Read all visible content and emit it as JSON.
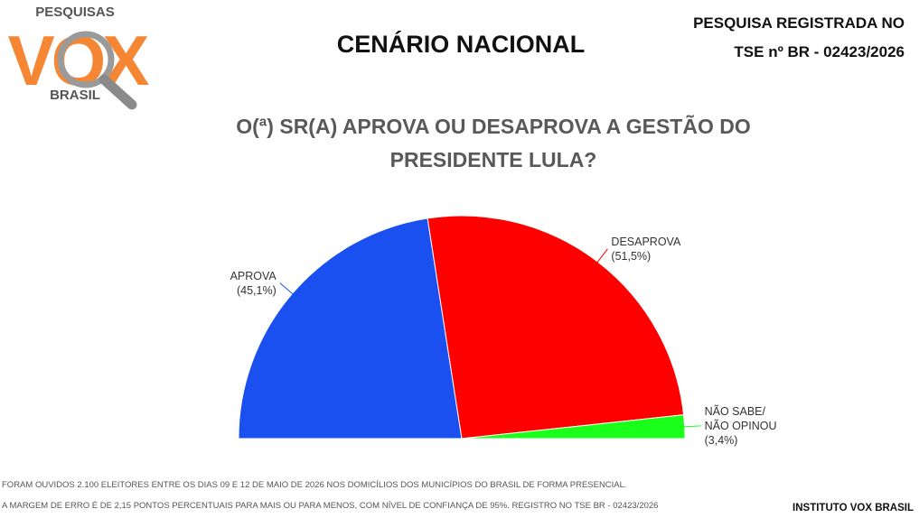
{
  "header": {
    "logo": {
      "top": "PESQUISAS",
      "main": "VOX",
      "bottom": "BRASIL"
    },
    "title": "CENÁRIO NACIONAL",
    "registration": [
      "PESQUISA REGISTRADA NO",
      "TSE nº BR - 02423/2026"
    ]
  },
  "chart_data": {
    "type": "pie",
    "half": true,
    "title": "O(ª) SR(A) APROVA OU DESAPROVA A GESTÃO DO PRESIDENTE LULA?",
    "categories": [
      "APROVA",
      "DESAPROVA",
      "NÃO SABE/ NÃO OPINOU"
    ],
    "values": [
      45.1,
      51.5,
      3.4
    ],
    "value_labels": [
      "(45,1%)",
      "(51,5%)",
      "(3,4%)"
    ],
    "colors": [
      "#1a50f0",
      "#ff0000",
      "#19ff19"
    ]
  },
  "footer": {
    "notes": [
      "FORAM OUVIDOS 2.100 ELEITORES ENTRE OS DIAS 09 E 12 DE MAIO DE 2026 NOS DOMICÍLIOS DOS MUNICÍPIOS DO BRASIL DE FORMA PRESENCIAL.",
      "A MARGEM DE ERRO É DE 2,15 PONTOS PERCENTUAIS PARA MAIS OU PARA MENOS, COM NÍVEL DE CONFIANÇA DE 95%. REGISTRO NO TSE BR - 02423/2026"
    ],
    "institute": "INSTITUTO VOX BRASIL"
  }
}
